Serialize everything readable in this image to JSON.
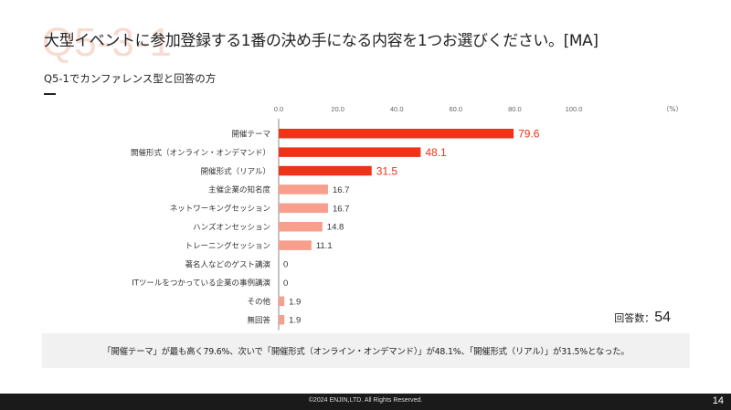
{
  "header": {
    "watermark": "Q5-3-1",
    "title": "大型イベントに参加登録する1番の決め手になる内容を1つお選びください。[MA]",
    "subtitle": "Q5-1でカンファレンス型と回答の方"
  },
  "colors": {
    "highlight": "#ee3319",
    "normal": "#f79e8c",
    "axis": "#888888"
  },
  "chart_data": {
    "type": "bar",
    "orientation": "horizontal",
    "categories": [
      "開催テーマ",
      "開催形式（オンライン・オンデマンド）",
      "開催形式（リアル）",
      "主催企業の知名度",
      "ネットワーキングセッション",
      "ハンズオンセッション",
      "トレーニングセッション",
      "著名人などのゲスト講演",
      "ITツールをつかっている企業の事例講演",
      "その他",
      "無回答"
    ],
    "values": [
      79.6,
      48.1,
      31.5,
      16.7,
      16.7,
      14.8,
      11.1,
      0,
      0,
      1.9,
      1.9
    ],
    "value_labels": [
      "79.6",
      "48.1",
      "31.5",
      "16.7",
      "16.7",
      "14.8",
      "11.1",
      "0",
      "0",
      "1.9",
      "1.9"
    ],
    "highlight_top": 3,
    "xlim": [
      0,
      100
    ],
    "ticks": [
      "0.0",
      "20.0",
      "40.0",
      "60.0",
      "80.0",
      "100.0"
    ],
    "unit": "（%）",
    "grid": false
  },
  "respondents": {
    "label": "回答数：",
    "count": "54"
  },
  "summary": "「開催テーマ」が最も高く79.6%、次いで「開催形式（オンライン・オンデマンド）」が48.1%、「開催形式（リアル）」が31.5%となった。",
  "footer": {
    "copyright": "©2024 ENJIN,LTD. All Rights Reserved.",
    "page": "14"
  }
}
